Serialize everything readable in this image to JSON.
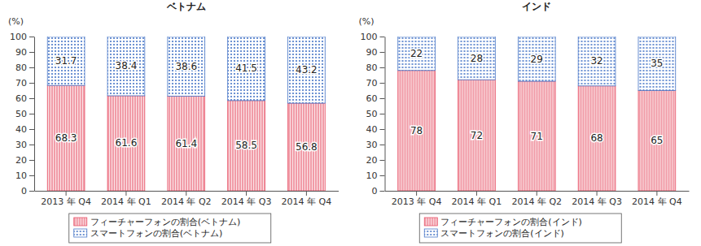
{
  "chart_data": [
    {
      "type": "bar",
      "title": "ベトナム",
      "y_label": "(%)",
      "stacked": true,
      "data_labels": true,
      "grid": false,
      "legend": "bottom",
      "categories": [
        "2013 年 Q4",
        "2014 年 Q1",
        "2014 年 Q2",
        "2014 年 Q3",
        "2014 年 Q4"
      ],
      "series": [
        {
          "name": "フィーチャーフォンの割合(ベトナム)",
          "color": "#e8556a",
          "values": [
            68.3,
            61.6,
            61.4,
            58.5,
            56.8
          ]
        },
        {
          "name": "スマートフォンの割合(ベトナム)",
          "color": "#4a78c8",
          "values": [
            31.7,
            38.4,
            38.6,
            41.5,
            43.2
          ]
        }
      ],
      "ylim": [
        0,
        100
      ],
      "yticks": [
        0,
        10,
        20,
        30,
        40,
        50,
        60,
        70,
        80,
        90,
        100
      ]
    },
    {
      "type": "bar",
      "title": "インド",
      "y_label": "(%)",
      "stacked": true,
      "data_labels": true,
      "grid": false,
      "legend": "bottom",
      "categories": [
        "2013 年 Q4",
        "2014 年 Q1",
        "2014 年 Q2",
        "2014 年 Q3",
        "2014 年 Q4"
      ],
      "series": [
        {
          "name": "フィーチャーフォンの割合(インド)",
          "color": "#e8556a",
          "values": [
            78,
            72,
            71,
            68,
            65
          ]
        },
        {
          "name": "スマートフォンの割合(インド)",
          "color": "#4a78c8",
          "values": [
            22,
            28,
            29,
            32,
            35
          ]
        }
      ],
      "ylim": [
        0,
        100
      ],
      "yticks": [
        0,
        10,
        20,
        30,
        40,
        50,
        60,
        70,
        80,
        90,
        100
      ]
    }
  ]
}
